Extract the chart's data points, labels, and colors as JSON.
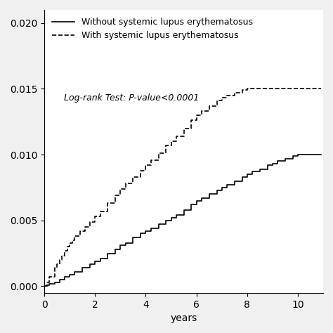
{
  "title": "",
  "xlabel": "years",
  "ylabel": "",
  "xlim": [
    0,
    11
  ],
  "ylim": [
    -0.0005,
    0.021
  ],
  "yticks": [
    0.0,
    0.005,
    0.01,
    0.015,
    0.02
  ],
  "xticks": [
    0,
    2,
    4,
    6,
    8,
    10
  ],
  "annotation": "Log-rank Test: P-value<0.0001",
  "legend_solid": "Without systemic lupus erythematosus",
  "legend_dashed": "With systemic lupus erythematosus",
  "background_color": "#ffffff",
  "line_color": "#000000",
  "solid_x": [
    0,
    0.1,
    0.2,
    0.4,
    0.6,
    0.8,
    1.0,
    1.2,
    1.5,
    1.8,
    2.0,
    2.2,
    2.5,
    2.8,
    3.0,
    3.2,
    3.5,
    3.8,
    4.0,
    4.2,
    4.5,
    4.8,
    5.0,
    5.2,
    5.5,
    5.8,
    6.0,
    6.2,
    6.5,
    6.8,
    7.0,
    7.2,
    7.5,
    7.8,
    8.0,
    8.2,
    8.5,
    8.8,
    9.0,
    9.2,
    9.5,
    9.8,
    10.0,
    10.5,
    10.9
  ],
  "solid_y": [
    0.0,
    0.0001,
    0.0002,
    0.0003,
    0.0005,
    0.0007,
    0.0009,
    0.0011,
    0.0014,
    0.0017,
    0.0019,
    0.0021,
    0.0025,
    0.0028,
    0.0031,
    0.0033,
    0.0037,
    0.004,
    0.0042,
    0.0044,
    0.0047,
    0.005,
    0.0052,
    0.0054,
    0.0058,
    0.0062,
    0.0065,
    0.0067,
    0.007,
    0.0073,
    0.0075,
    0.0077,
    0.008,
    0.0083,
    0.0085,
    0.0087,
    0.0089,
    0.0092,
    0.0093,
    0.0095,
    0.0097,
    0.0099,
    0.01,
    0.01,
    0.01
  ],
  "dashed_x": [
    0,
    0.1,
    0.2,
    0.4,
    0.5,
    0.6,
    0.7,
    0.8,
    0.9,
    1.0,
    1.1,
    1.2,
    1.4,
    1.6,
    1.8,
    2.0,
    2.2,
    2.5,
    2.8,
    3.0,
    3.2,
    3.5,
    3.8,
    4.0,
    4.2,
    4.5,
    4.8,
    5.0,
    5.2,
    5.5,
    5.8,
    6.0,
    6.2,
    6.5,
    6.8,
    7.0,
    7.2,
    7.5,
    7.8,
    8.0,
    8.2,
    8.5,
    8.8,
    9.0,
    9.5,
    10.0,
    10.5,
    10.9
  ],
  "dashed_y": [
    0.0,
    0.0003,
    0.0007,
    0.0014,
    0.0017,
    0.002,
    0.0023,
    0.0027,
    0.003,
    0.0033,
    0.0035,
    0.0038,
    0.0042,
    0.0045,
    0.0049,
    0.0053,
    0.0057,
    0.0063,
    0.0069,
    0.0074,
    0.0078,
    0.0083,
    0.0088,
    0.0092,
    0.0096,
    0.0101,
    0.0107,
    0.011,
    0.0114,
    0.012,
    0.0126,
    0.013,
    0.0133,
    0.0137,
    0.0141,
    0.0143,
    0.0145,
    0.0147,
    0.0149,
    0.015,
    0.015,
    0.015,
    0.015,
    0.015,
    0.015,
    0.015,
    0.015,
    0.015
  ],
  "line_width": 1.2,
  "font_size": 10,
  "annotation_fontsize": 9
}
